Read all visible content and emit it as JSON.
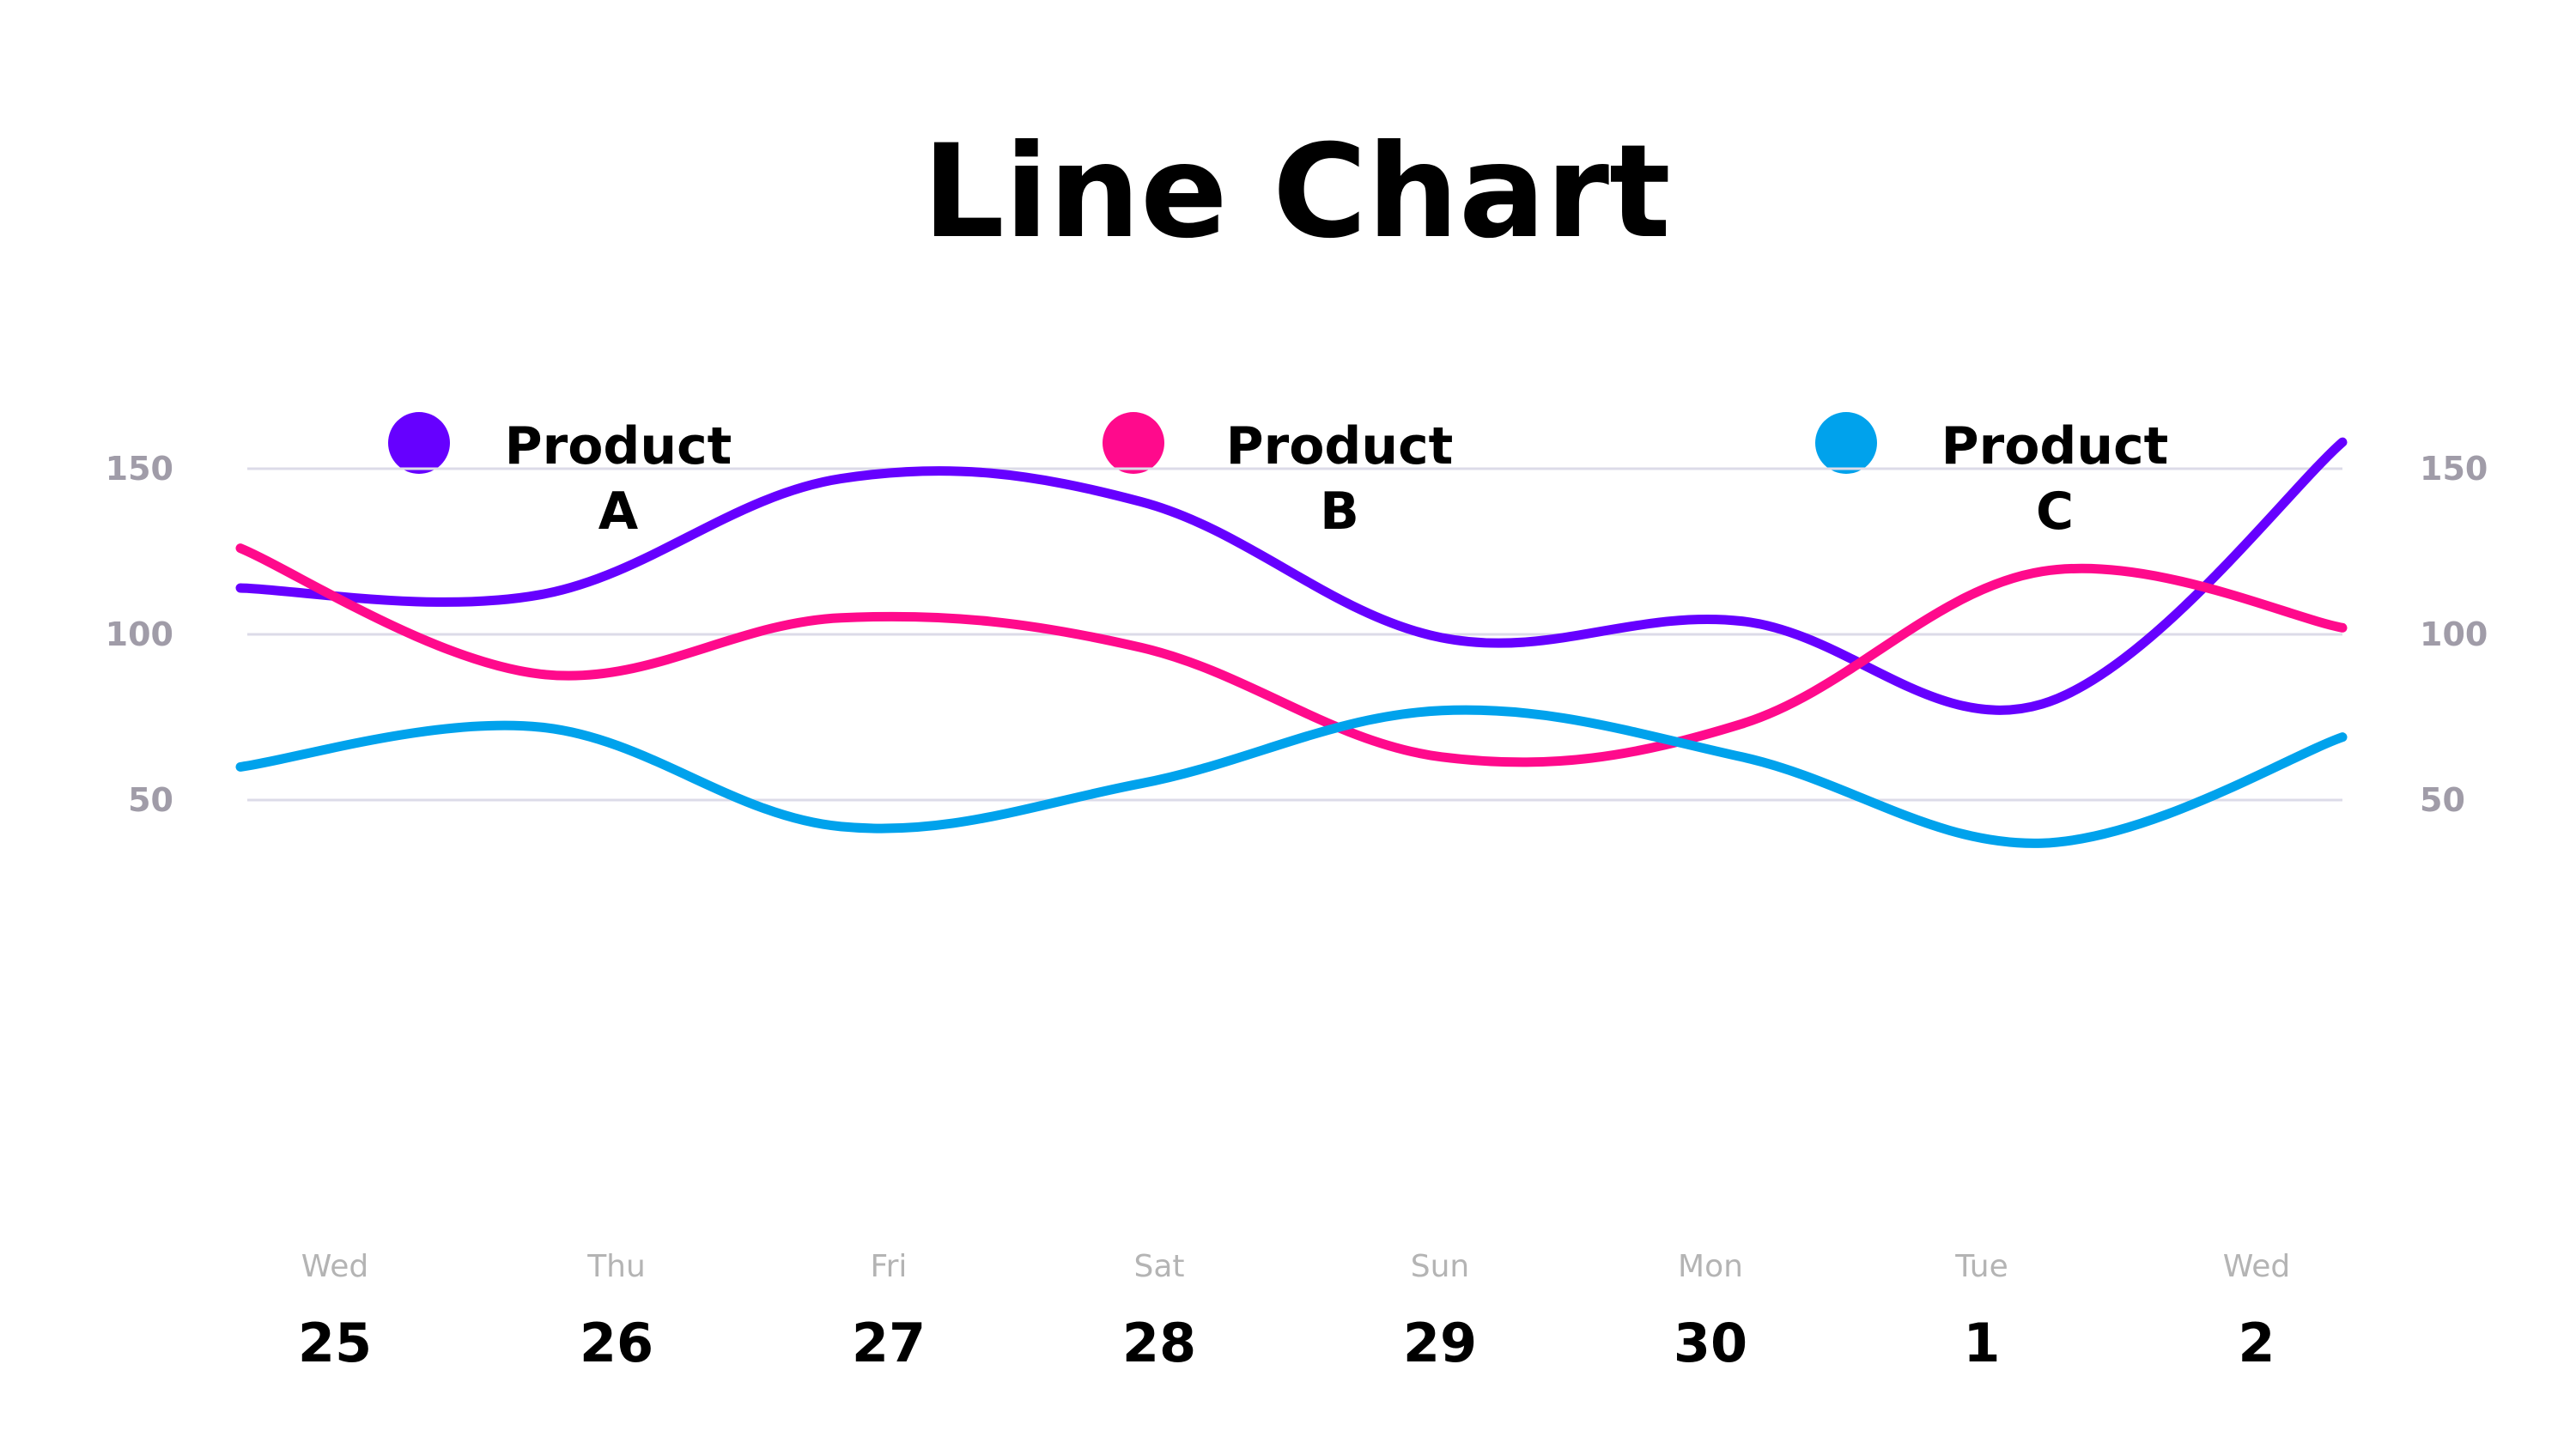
{
  "chart_data": {
    "type": "line",
    "title": "Line Chart",
    "xlabel": "",
    "ylabel": "",
    "ylim": [
      0,
      170
    ],
    "yticks": [
      50,
      100,
      150
    ],
    "grid": true,
    "legend_placement": "top",
    "categories": [
      {
        "day": "Wed",
        "date": "25"
      },
      {
        "day": "Thu",
        "date": "26"
      },
      {
        "day": "Fri",
        "date": "27"
      },
      {
        "day": "Sat",
        "date": "28"
      },
      {
        "day": "Sun",
        "date": "29"
      },
      {
        "day": "Mon",
        "date": "30"
      },
      {
        "day": "Tue",
        "date": "1"
      },
      {
        "day": "Wed",
        "date": "2"
      }
    ],
    "series": [
      {
        "name": "Product A",
        "color": "#6600ff",
        "values": [
          114,
          112,
          147,
          140,
          99,
          104,
          79,
          158
        ]
      },
      {
        "name": "Product B",
        "color": "#ff0a8c",
        "values": [
          126,
          88,
          105,
          96,
          63,
          73,
          119,
          102
        ]
      },
      {
        "name": "Product C",
        "color": "#00a2ec",
        "values": [
          60,
          72,
          42,
          55,
          77,
          63,
          37,
          69
        ]
      }
    ]
  }
}
